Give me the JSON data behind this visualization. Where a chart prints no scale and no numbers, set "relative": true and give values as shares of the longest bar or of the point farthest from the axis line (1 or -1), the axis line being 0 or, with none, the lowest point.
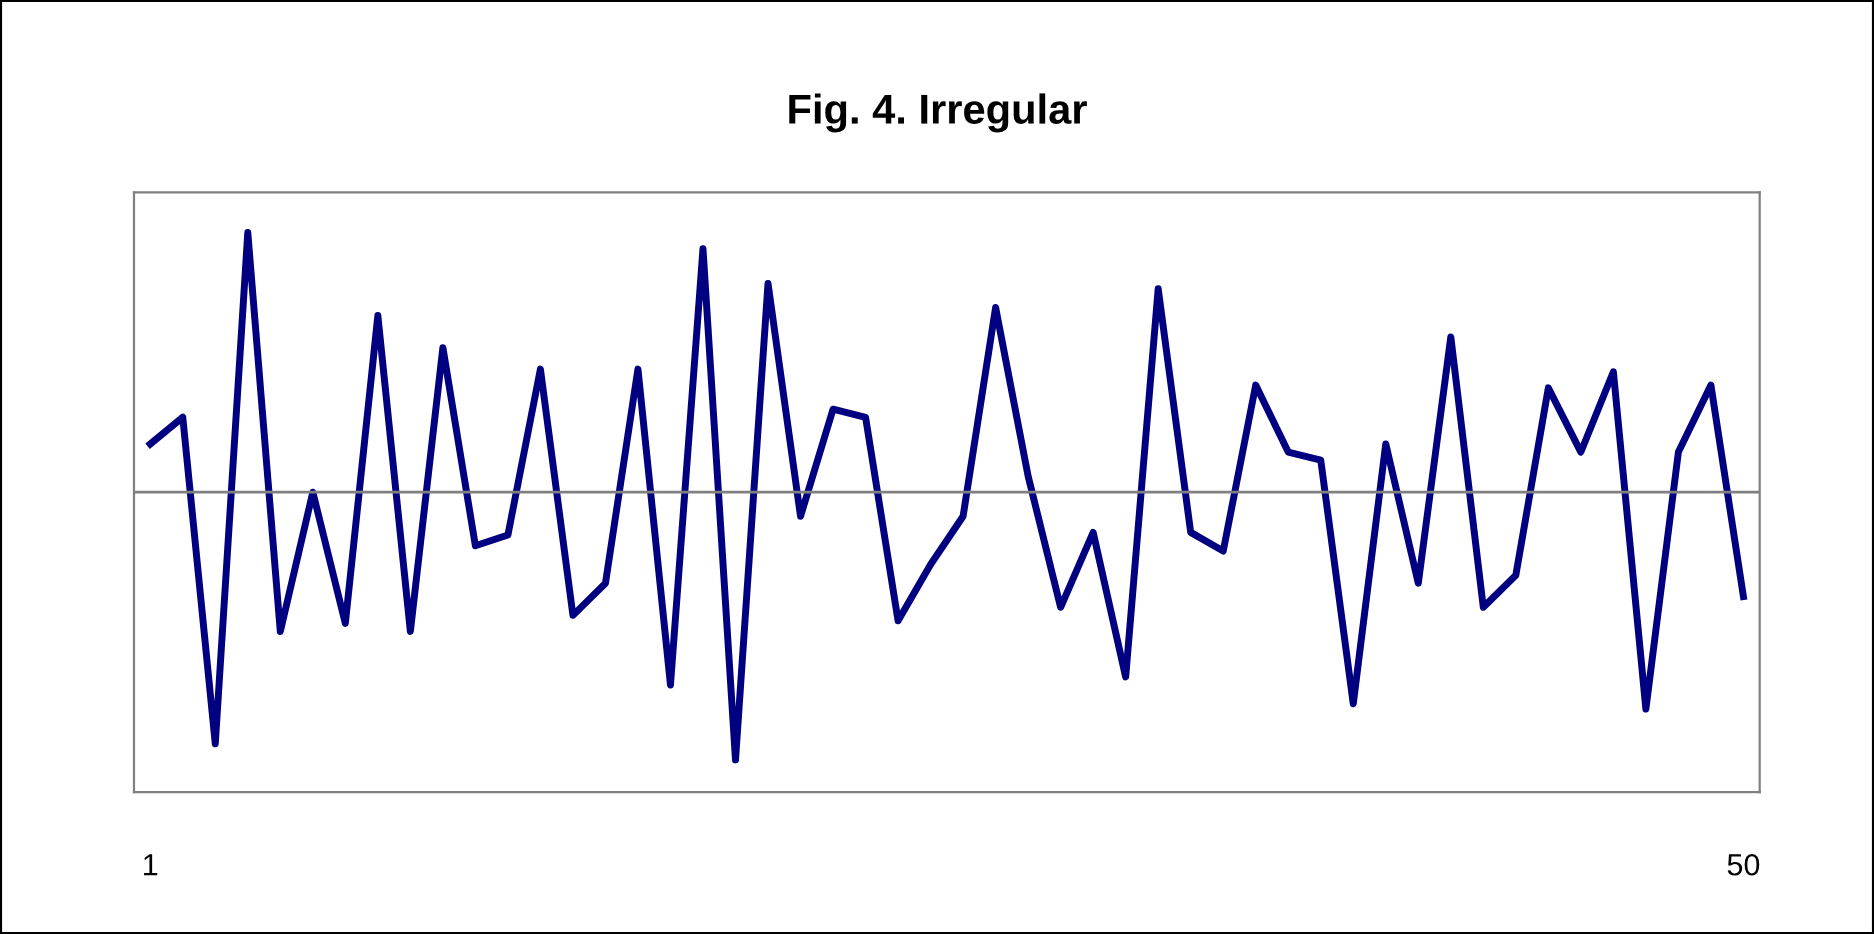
{
  "chart_data": {
    "type": "line",
    "title": "Fig. 4. Irregular",
    "relative": true,
    "x": [
      1,
      2,
      3,
      4,
      5,
      6,
      7,
      8,
      9,
      10,
      11,
      12,
      13,
      14,
      15,
      16,
      17,
      18,
      19,
      20,
      21,
      22,
      23,
      24,
      25,
      26,
      27,
      28,
      29,
      30,
      31,
      32,
      33,
      34,
      35,
      36,
      37,
      38,
      39,
      40,
      41,
      42,
      43,
      44,
      45,
      46,
      47,
      48,
      49,
      50
    ],
    "series": [
      {
        "color": "#000080",
        "values": [
          0.18,
          0.28,
          -0.94,
          0.97,
          -0.52,
          0,
          -0.49,
          0.66,
          -0.52,
          0.54,
          -0.2,
          -0.16,
          0.46,
          -0.46,
          -0.34,
          0.46,
          -0.72,
          0.91,
          -1,
          0.78,
          -0.09,
          0.31,
          0.28,
          -0.48,
          -0.27,
          -0.09,
          0.69,
          0.06,
          -0.43,
          -0.15,
          -0.69,
          0.76,
          -0.15,
          -0.22,
          0.4,
          0.15,
          0.12,
          -0.79,
          0.18,
          -0.34,
          0.58,
          -0.43,
          -0.31,
          0.39,
          0.15,
          0.45,
          -0.81,
          0.15,
          0.4,
          -0.39
        ]
      }
    ],
    "xlim": [
      0.5,
      50.5
    ],
    "xticks": [
      1,
      50
    ],
    "tick_labels": "x",
    "grid": false,
    "legend": false,
    "marker": "none",
    "line_style": "solid"
  }
}
